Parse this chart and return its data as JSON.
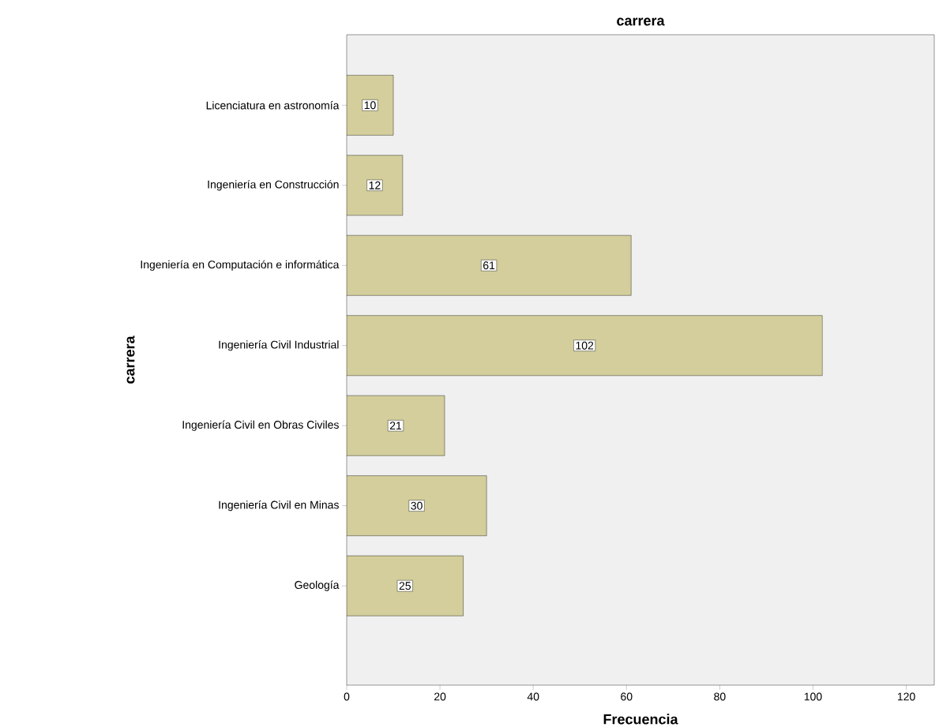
{
  "chart_data": {
    "type": "bar",
    "orientation": "horizontal",
    "title": "carrera",
    "xlabel": "Frecuencia",
    "ylabel": "carrera",
    "categories": [
      "Licenciatura en astronomía",
      "Ingeniería en Construcción",
      "Ingeniería en Computación e informática",
      "Ingeniería Civil Industrial",
      "Ingeniería Civil en Obras Civiles",
      "Ingeniería Civil en Minas",
      "Geología"
    ],
    "values": [
      10,
      12,
      61,
      102,
      21,
      30,
      25
    ],
    "color": "#d3ce9b",
    "data_labels": true,
    "xlim": [
      0,
      126
    ],
    "xticks": [
      0,
      20,
      40,
      60,
      80,
      100,
      120
    ],
    "grid": false
  }
}
